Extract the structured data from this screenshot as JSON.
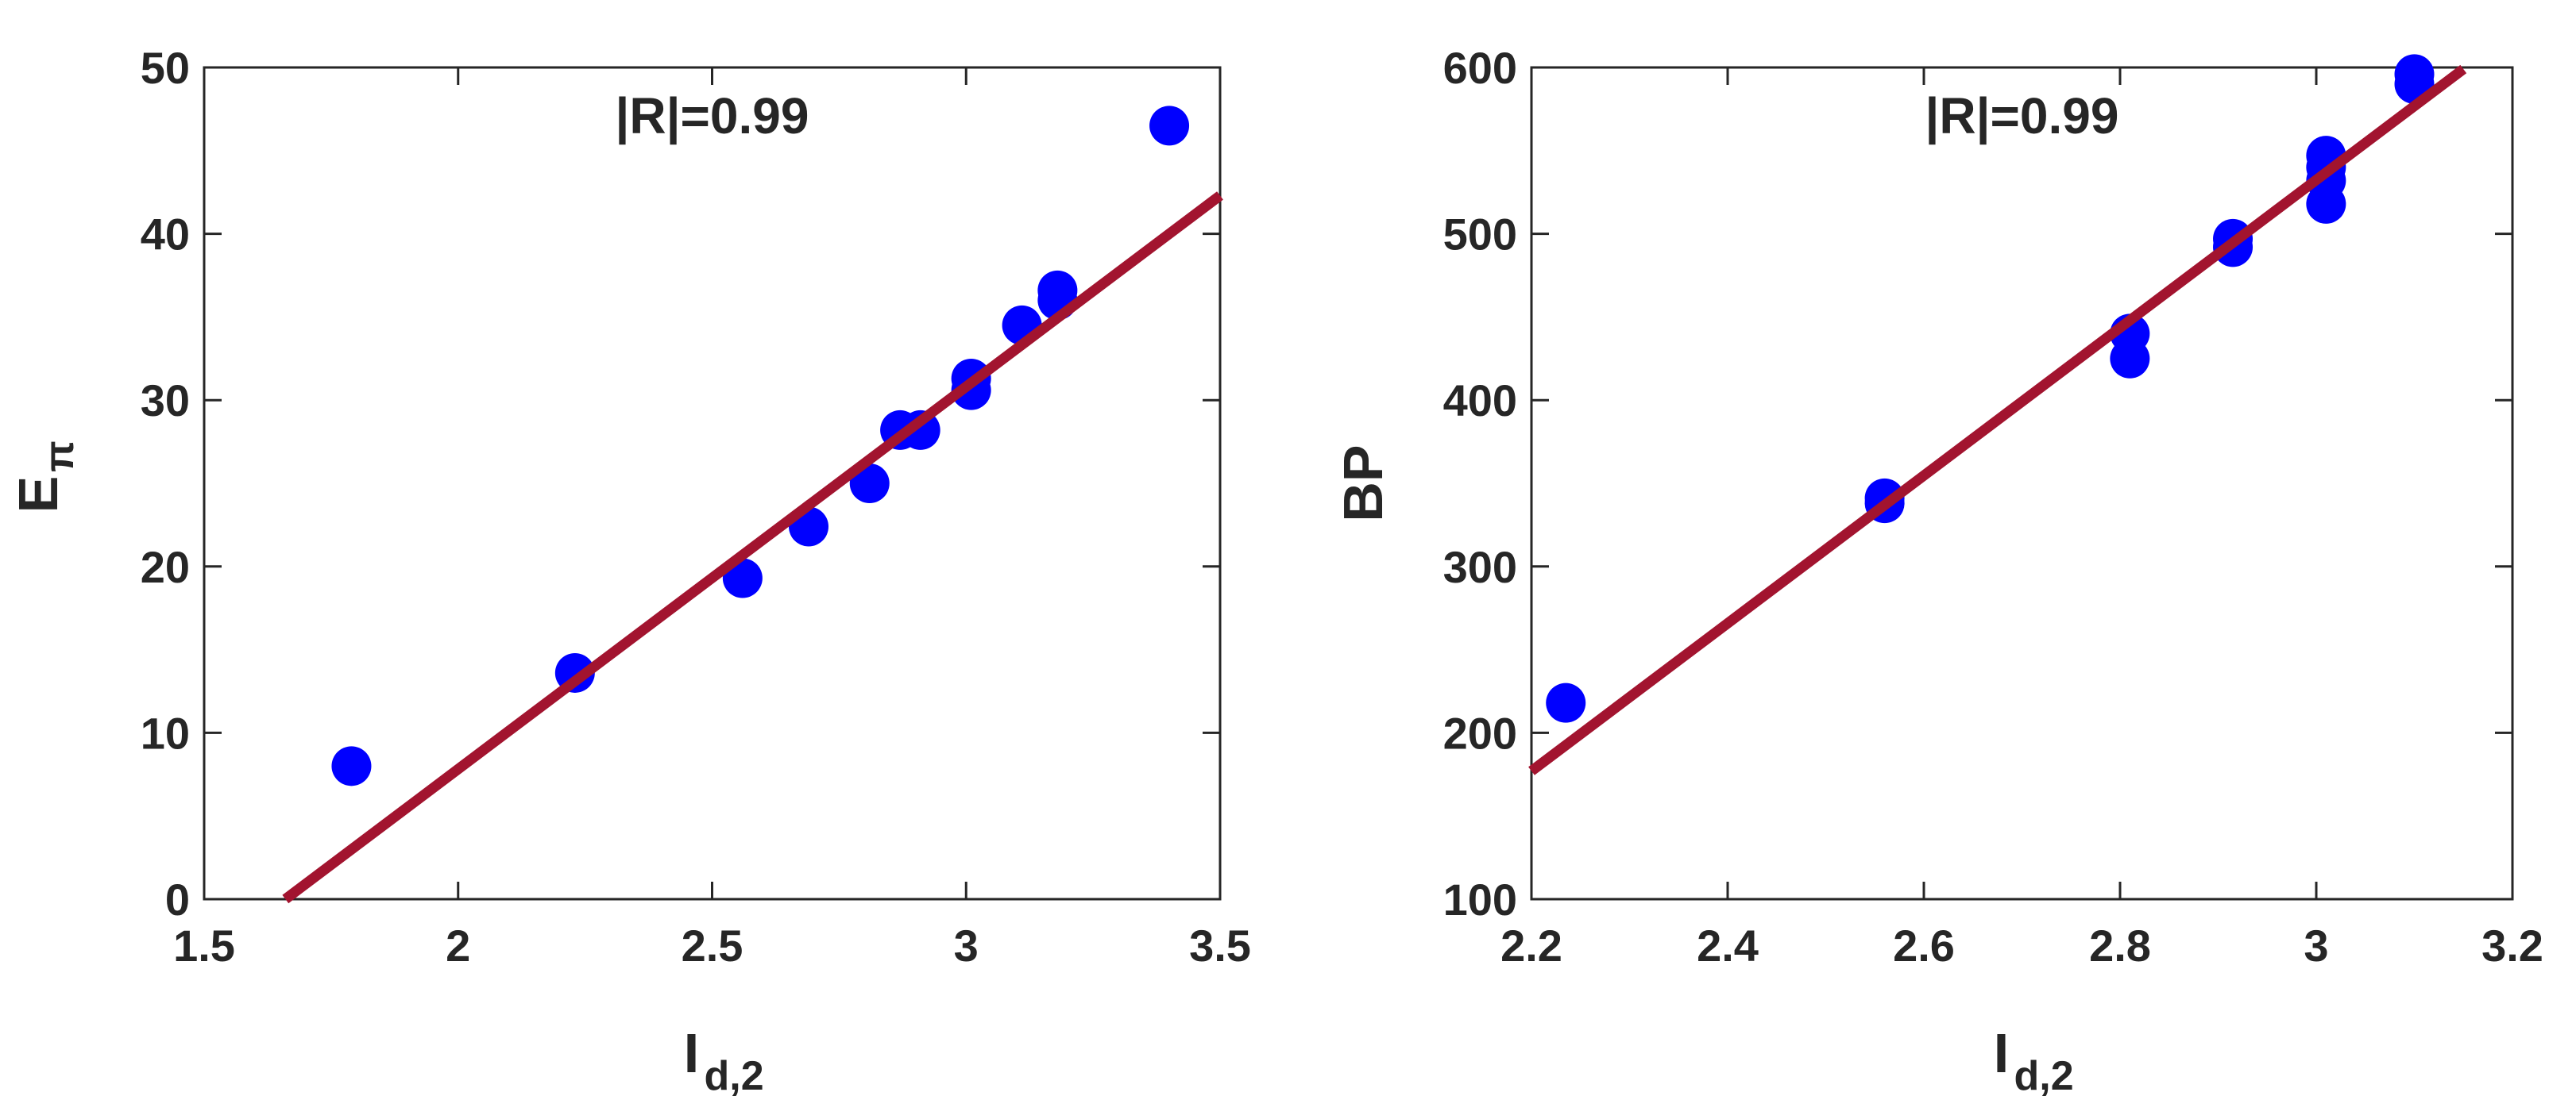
{
  "colors": {
    "marker": "#0000ff",
    "fit_line": "#a2142f",
    "axis": "#262626"
  },
  "chart_data": [
    {
      "type": "scatter",
      "title": "",
      "annotation": "|R|=0.99",
      "xlabel_main": "I",
      "xlabel_sub": "d,2",
      "ylabel_main": "E",
      "ylabel_sub": "π",
      "xlim": [
        1.5,
        3.5
      ],
      "ylim": [
        0,
        50
      ],
      "xticks": [
        1.5,
        2,
        2.5,
        3,
        3.5
      ],
      "xtick_labels": [
        "1.5",
        "2",
        "2.5",
        "3",
        "3.5"
      ],
      "yticks": [
        0,
        10,
        20,
        30,
        40,
        50
      ],
      "ytick_labels": [
        "0",
        "10",
        "20",
        "30",
        "40",
        "50"
      ],
      "grid": false,
      "points": [
        {
          "x": 1.79,
          "y": 8.0
        },
        {
          "x": 2.23,
          "y": 13.6
        },
        {
          "x": 2.56,
          "y": 19.3
        },
        {
          "x": 2.69,
          "y": 22.4
        },
        {
          "x": 2.81,
          "y": 25.0
        },
        {
          "x": 2.87,
          "y": 28.2
        },
        {
          "x": 2.91,
          "y": 28.2
        },
        {
          "x": 3.01,
          "y": 30.6
        },
        {
          "x": 3.01,
          "y": 31.3
        },
        {
          "x": 3.11,
          "y": 34.5
        },
        {
          "x": 3.18,
          "y": 36.0
        },
        {
          "x": 3.18,
          "y": 36.6
        },
        {
          "x": 3.4,
          "y": 46.5
        }
      ],
      "fit": {
        "x": [
          1.66,
          3.5
        ],
        "y": [
          0.0,
          42.3
        ]
      }
    },
    {
      "type": "scatter",
      "title": "",
      "annotation": "|R|=0.99",
      "xlabel_main": "I",
      "xlabel_sub": "d,2",
      "ylabel_main": "BP",
      "ylabel_sub": "",
      "xlim": [
        2.2,
        3.2
      ],
      "ylim": [
        100,
        600
      ],
      "xticks": [
        2.2,
        2.4,
        2.6,
        2.8,
        3.0,
        3.2
      ],
      "xtick_labels": [
        "2.2",
        "2.4",
        "2.6",
        "2.8",
        "3",
        "3.2"
      ],
      "yticks": [
        100,
        200,
        300,
        400,
        500,
        600
      ],
      "ytick_labels": [
        "100",
        "200",
        "300",
        "400",
        "500",
        "600"
      ],
      "grid": false,
      "points": [
        {
          "x": 2.235,
          "y": 218
        },
        {
          "x": 2.56,
          "y": 338
        },
        {
          "x": 2.56,
          "y": 341
        },
        {
          "x": 2.81,
          "y": 425
        },
        {
          "x": 2.81,
          "y": 440
        },
        {
          "x": 2.915,
          "y": 492
        },
        {
          "x": 2.915,
          "y": 497
        },
        {
          "x": 3.01,
          "y": 518
        },
        {
          "x": 3.01,
          "y": 532
        },
        {
          "x": 3.01,
          "y": 540
        },
        {
          "x": 3.01,
          "y": 547
        },
        {
          "x": 3.1,
          "y": 590
        },
        {
          "x": 3.1,
          "y": 596
        }
      ],
      "fit": {
        "x": [
          2.2,
          3.15
        ],
        "y": [
          177,
          599
        ]
      }
    }
  ]
}
